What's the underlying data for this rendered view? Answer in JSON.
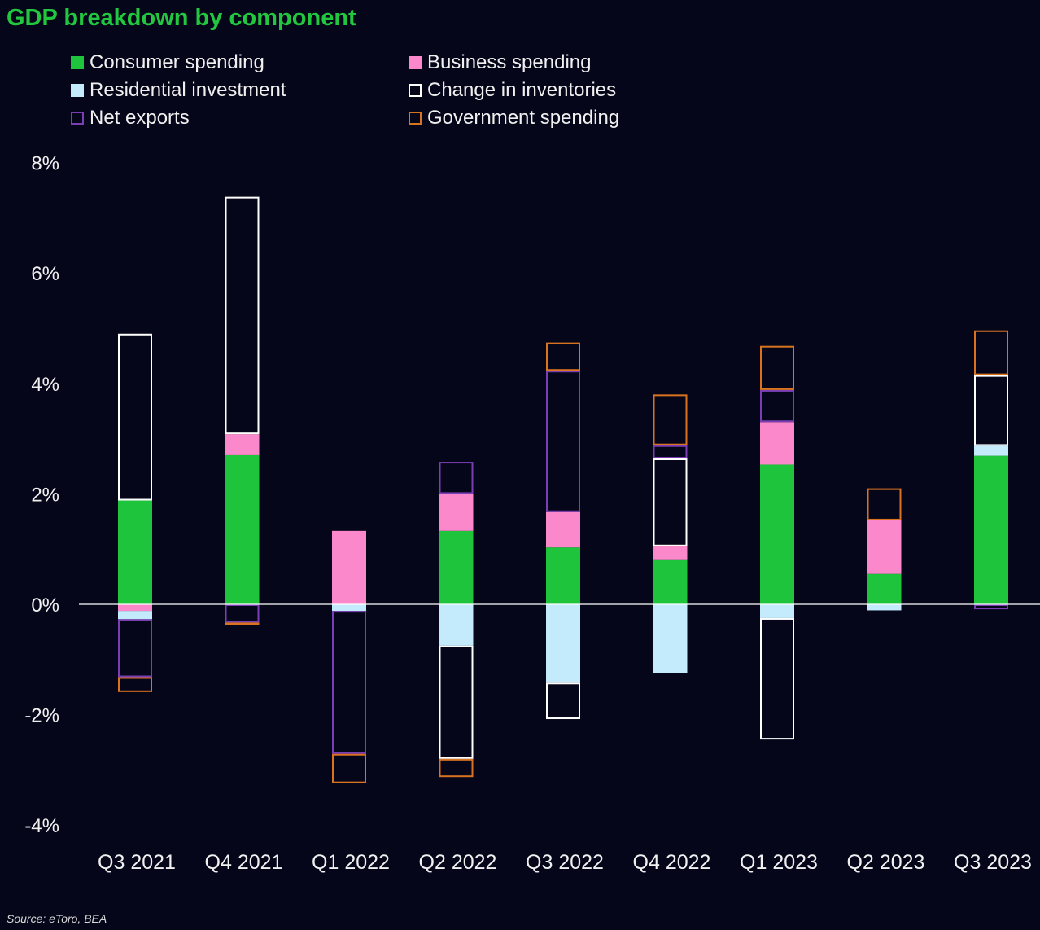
{
  "chart_data": {
    "type": "bar",
    "stacked": true,
    "title": "GDP breakdown by component",
    "xlabel": "",
    "ylabel": "",
    "categories": [
      "Q3 2021",
      "Q4 2021",
      "Q1 2022",
      "Q2 2022",
      "Q3 2022",
      "Q4 2022",
      "Q1 2023",
      "Q2 2023",
      "Q3 2023"
    ],
    "ylim": [
      -4,
      8
    ],
    "yticks": [
      8,
      6,
      4,
      2,
      0,
      -2,
      -4
    ],
    "ytick_labels": [
      "8%",
      "6%",
      "4%",
      "2%",
      "0%",
      "-2%",
      "-4%"
    ],
    "grid": false,
    "legend_position": "top",
    "series": [
      {
        "name": "Consumer spending",
        "color": "#1ec43c",
        "style": "filled",
        "values": [
          1.88,
          2.7,
          0,
          1.33,
          1.03,
          0.8,
          2.53,
          0.55,
          2.69
        ]
      },
      {
        "name": "Business spending",
        "color": "#fa88ca",
        "style": "filled",
        "values": [
          -0.12,
          0.38,
          1.33,
          0.67,
          0.64,
          0.25,
          0.77,
          0.97,
          0
        ]
      },
      {
        "name": "Residential investment",
        "color": "#c3ebfc",
        "style": "filled",
        "values": [
          -0.15,
          0,
          -0.12,
          -0.75,
          -1.42,
          -1.24,
          -0.25,
          -0.11,
          0.18
        ]
      },
      {
        "name": "Change in inventories",
        "color": "#ffffff",
        "style": "outline",
        "values": [
          3.02,
          4.3,
          0,
          -2.05,
          -0.66,
          1.59,
          -2.2,
          0,
          1.28
        ]
      },
      {
        "name": "Net exports",
        "color": "#7a3fb4",
        "style": "outline",
        "values": [
          -1.05,
          -0.33,
          -2.59,
          0.58,
          2.56,
          0.24,
          0.58,
          0,
          -0.09
        ]
      },
      {
        "name": "Government spending",
        "color": "#d9731f",
        "style": "outline",
        "values": [
          -0.27,
          -0.05,
          -0.53,
          -0.33,
          0.51,
          0.92,
          0.8,
          0.58,
          0.81
        ]
      }
    ],
    "source": "Source: eToro, BEA"
  }
}
